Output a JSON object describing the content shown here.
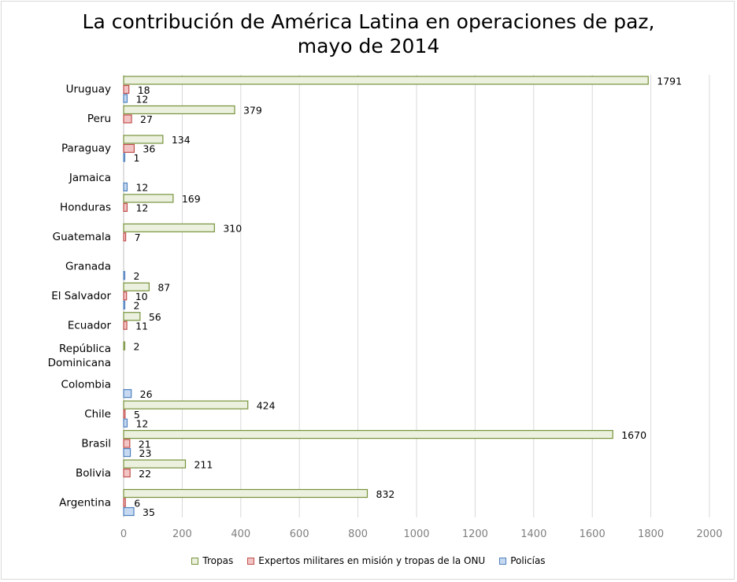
{
  "chart_data": {
    "type": "bar",
    "orientation": "horizontal",
    "title_lines": [
      "La contribución de América Latina en operaciones de paz,",
      "mayo de 2014"
    ],
    "categories": [
      "Uruguay",
      "Peru",
      "Paraguay",
      "Jamaica",
      "Honduras",
      "Guatemala",
      "Granada",
      "El Salvador",
      "Ecuador",
      "República Dominicana",
      "Colombia",
      "Chile",
      "Brasil",
      "Bolivia",
      "Argentina"
    ],
    "category_label_lines": [
      [
        "Uruguay"
      ],
      [
        "Peru"
      ],
      [
        "Paraguay"
      ],
      [
        "Jamaica"
      ],
      [
        "Honduras"
      ],
      [
        "Guatemala"
      ],
      [
        "Granada"
      ],
      [
        "El Salvador"
      ],
      [
        "Ecuador"
      ],
      [
        "República",
        "Dominicana"
      ],
      [
        "Colombia"
      ],
      [
        "Chile"
      ],
      [
        "Brasil"
      ],
      [
        "Bolivia"
      ],
      [
        "Argentina"
      ]
    ],
    "series": [
      {
        "name": "Tropas",
        "fill": "#ebf1de",
        "stroke": "#77933c",
        "values": [
          1791,
          379,
          134,
          null,
          169,
          310,
          null,
          87,
          56,
          2,
          null,
          424,
          1670,
          211,
          832
        ]
      },
      {
        "name": "Expertos militares en misión y tropas de la ONU",
        "fill": "#f2c4c4",
        "stroke": "#c0504d",
        "values": [
          18,
          27,
          36,
          null,
          12,
          7,
          null,
          10,
          11,
          null,
          null,
          5,
          21,
          22,
          6
        ]
      },
      {
        "name": "Policías",
        "fill": "#c6d9f1",
        "stroke": "#4f81bd",
        "values": [
          12,
          null,
          1,
          12,
          null,
          null,
          2,
          2,
          null,
          null,
          26,
          12,
          23,
          null,
          35
        ]
      }
    ],
    "x_ticks": [
      0,
      200,
      400,
      600,
      800,
      1000,
      1200,
      1400,
      1600,
      1800,
      2000
    ],
    "xlim": [
      0,
      2000
    ],
    "grid": "vertical",
    "legend_position": "bottom"
  }
}
